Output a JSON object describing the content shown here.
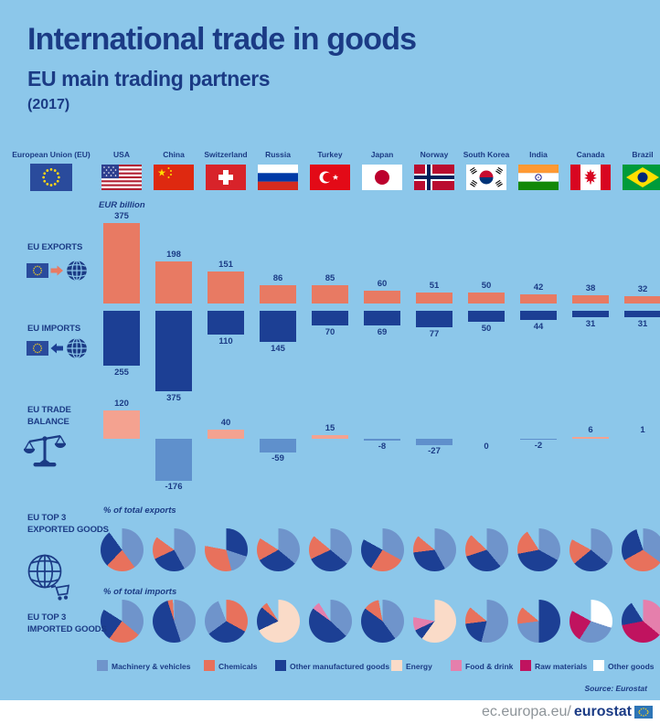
{
  "header": {
    "title": "International trade in goods",
    "subtitle": "EU main trading partners",
    "year": "(2017)"
  },
  "eu_column": {
    "label": "European Union (EU)",
    "flag_icon": "eu-flag-icon"
  },
  "sections": {
    "exports": {
      "label": "EU EXPORTS",
      "icon": "eu-to-world-arrow-icon"
    },
    "imports": {
      "label": "EU IMPORTS",
      "icon": "world-to-eu-arrow-icon"
    },
    "balance": {
      "line1": "EU TRADE",
      "line2": "BALANCE",
      "icon": "balance-scales-icon"
    },
    "top_exported": {
      "line1": "EU TOP 3",
      "line2": "EXPORTED GOODS",
      "icon": "globe-cart-icon"
    },
    "top_imported": {
      "line1": "EU TOP 3",
      "line2": "IMPORTED GOODS"
    }
  },
  "colors": {
    "background": "#8CC7EA",
    "text_navy": "#1B3B85",
    "export_bar": "#E87A63",
    "import_bar": "#1C3F94",
    "balance_positive": "#F4A290",
    "balance_negative": "#5F90CC",
    "machinery": "#6F94CB",
    "chemicals": "#E8715C",
    "other_manufactured": "#1C3F94",
    "energy": "#FADBC8",
    "food_drink": "#E57FAC",
    "raw_materials": "#C0135F",
    "other_goods": "#FFFFFF"
  },
  "chart_data": {
    "unit_label": "EUR billion",
    "categories": [
      "USA",
      "China",
      "Switzerland",
      "Russia",
      "Turkey",
      "Japan",
      "Norway",
      "South Korea",
      "India",
      "Canada",
      "Brazil"
    ],
    "exports_bar": {
      "type": "bar",
      "title": "EU exports",
      "values": [
        375,
        198,
        151,
        86,
        85,
        60,
        51,
        50,
        42,
        38,
        32
      ]
    },
    "imports_bar": {
      "type": "bar",
      "title": "EU imports",
      "values": [
        255,
        375,
        110,
        145,
        70,
        69,
        77,
        50,
        44,
        31,
        31
      ]
    },
    "balance_bar": {
      "type": "bar",
      "title": "EU trade balance",
      "values": [
        120,
        -176,
        40,
        -59,
        15,
        -8,
        -27,
        0,
        -2,
        6,
        1
      ]
    },
    "export_pies": {
      "type": "pie",
      "unit": "% of total exports",
      "slices_key_pct": [
        [
          [
            "machinery",
            40
          ],
          [
            "chemicals",
            22
          ],
          [
            "other_manufactured",
            28
          ]
        ],
        [
          [
            "machinery",
            42
          ],
          [
            "other_manufactured",
            26
          ],
          [
            "chemicals",
            17
          ]
        ],
        [
          [
            "other_manufactured",
            30
          ],
          [
            "machinery",
            16
          ],
          [
            "chemicals",
            32
          ]
        ],
        [
          [
            "machinery",
            36
          ],
          [
            "other_manufactured",
            31
          ],
          [
            "chemicals",
            17
          ]
        ],
        [
          [
            "machinery",
            36
          ],
          [
            "other_manufactured",
            32
          ],
          [
            "chemicals",
            18
          ]
        ],
        [
          [
            "machinery",
            33
          ],
          [
            "chemicals",
            26
          ],
          [
            "other_manufactured",
            24
          ]
        ],
        [
          [
            "machinery",
            42
          ],
          [
            "other_manufactured",
            31
          ],
          [
            "chemicals",
            13
          ]
        ],
        [
          [
            "machinery",
            39
          ],
          [
            "other_manufactured",
            31
          ],
          [
            "chemicals",
            17
          ]
        ],
        [
          [
            "machinery",
            33
          ],
          [
            "other_manufactured",
            39
          ],
          [
            "chemicals",
            19
          ]
        ],
        [
          [
            "machinery",
            36
          ],
          [
            "other_manufactured",
            28
          ],
          [
            "chemicals",
            19
          ]
        ],
        [
          [
            "machinery",
            35
          ],
          [
            "chemicals",
            32
          ],
          [
            "other_manufactured",
            28
          ]
        ]
      ]
    },
    "import_pies": {
      "type": "pie",
      "unit": "% of total imports",
      "slices_key_pct": [
        [
          [
            "machinery",
            36
          ],
          [
            "chemicals",
            24
          ],
          [
            "other_manufactured",
            24
          ]
        ],
        [
          [
            "machinery",
            45
          ],
          [
            "other_manufactured",
            50
          ],
          [
            "chemicals",
            4
          ]
        ],
        [
          [
            "chemicals",
            33
          ],
          [
            "other_manufactured",
            32
          ],
          [
            "machinery",
            29
          ]
        ],
        [
          [
            "energy",
            68
          ],
          [
            "other_manufactured",
            18
          ],
          [
            "chemicals",
            5
          ]
        ],
        [
          [
            "machinery",
            37
          ],
          [
            "other_manufactured",
            48
          ],
          [
            "food_drink",
            6
          ]
        ],
        [
          [
            "machinery",
            40
          ],
          [
            "other_manufactured",
            45
          ],
          [
            "chemicals",
            12
          ]
        ],
        [
          [
            "energy",
            60
          ],
          [
            "other_manufactured",
            8
          ],
          [
            "food_drink",
            10
          ]
        ],
        [
          [
            "machinery",
            54
          ],
          [
            "other_manufactured",
            19
          ],
          [
            "chemicals",
            13
          ]
        ],
        [
          [
            "other_manufactured",
            50
          ],
          [
            "machinery",
            23
          ],
          [
            "chemicals",
            13
          ]
        ],
        [
          [
            "other_goods",
            30
          ],
          [
            "machinery",
            29
          ],
          [
            "raw_materials",
            24
          ]
        ],
        [
          [
            "food_drink",
            36
          ],
          [
            "raw_materials",
            36
          ],
          [
            "other_manufactured",
            19
          ]
        ]
      ]
    }
  },
  "legend": {
    "items": [
      {
        "key": "machinery",
        "label": "Machinery & vehicles"
      },
      {
        "key": "chemicals",
        "label": "Chemicals"
      },
      {
        "key": "other_manufactured",
        "label": "Other manufactured goods"
      },
      {
        "key": "energy",
        "label": "Energy"
      },
      {
        "key": "food_drink",
        "label": "Food & drink"
      },
      {
        "key": "raw_materials",
        "label": "Raw materials"
      },
      {
        "key": "other_goods",
        "label": "Other goods"
      }
    ]
  },
  "source": "Source: Eurostat",
  "footer": {
    "url_prefix": "ec.europa.eu/",
    "url_bold": "eurostat",
    "logo_icon": "eurostat-eu-logo-icon"
  }
}
